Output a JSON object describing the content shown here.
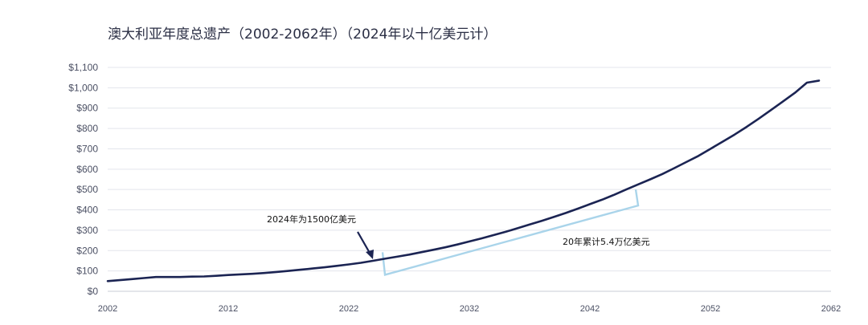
{
  "chart_data": {
    "type": "line",
    "title": "澳大利亚年度总遗产（2002-2062年）（2024年以十亿美元计）",
    "xlabel": "",
    "ylabel": "",
    "xlim": [
      2002,
      2062
    ],
    "ylim": [
      0,
      1100
    ],
    "grid": true,
    "xticks": [
      2002,
      2012,
      2022,
      2032,
      2042,
      2052,
      2062
    ],
    "xtick_labels": [
      "2002",
      "2012",
      "2022",
      "2032",
      "2042",
      "2052",
      "2062"
    ],
    "yticks": [
      0,
      100,
      200,
      300,
      400,
      500,
      600,
      700,
      800,
      900,
      1000,
      1100
    ],
    "ytick_labels": [
      "$0",
      "$100",
      "$200",
      "$300",
      "$400",
      "$500",
      "$600",
      "$700",
      "$800",
      "$900",
      "$1,000",
      "$1,100"
    ],
    "series": [
      {
        "color": "#1b2453",
        "x": [
          2002,
          2003,
          2004,
          2005,
          2006,
          2007,
          2008,
          2009,
          2010,
          2011,
          2012,
          2013,
          2014,
          2015,
          2016,
          2017,
          2018,
          2019,
          2020,
          2021,
          2022,
          2023,
          2024,
          2025,
          2026,
          2027,
          2028,
          2029,
          2030,
          2031,
          2032,
          2033,
          2034,
          2035,
          2036,
          2037,
          2038,
          2039,
          2040,
          2041,
          2042,
          2043,
          2044,
          2045,
          2046,
          2047,
          2048,
          2049,
          2050,
          2051,
          2052,
          2053,
          2054,
          2055,
          2056,
          2057,
          2058,
          2059,
          2060,
          2061
        ],
        "values": [
          50,
          55,
          60,
          65,
          70,
          70,
          70,
          72,
          73,
          76,
          80,
          83,
          86,
          90,
          95,
          100,
          106,
          112,
          118,
          125,
          132,
          140,
          150,
          160,
          170,
          180,
          192,
          204,
          216,
          230,
          245,
          260,
          276,
          292,
          310,
          328,
          346,
          365,
          385,
          406,
          428,
          450,
          474,
          500,
          525,
          550,
          576,
          605,
          635,
          665,
          700,
          735,
          770,
          808,
          848,
          890,
          932,
          975,
          1025,
          1035
        ]
      }
    ],
    "annotations": [
      {
        "text": "2024年为1500亿美元",
        "type": "arrow",
        "target": [
          2024,
          150
        ]
      },
      {
        "text": "20年累计5.4万亿美元",
        "type": "bracket",
        "x_range": [
          2025,
          2046
        ],
        "color": "#a9d4ea"
      }
    ]
  }
}
